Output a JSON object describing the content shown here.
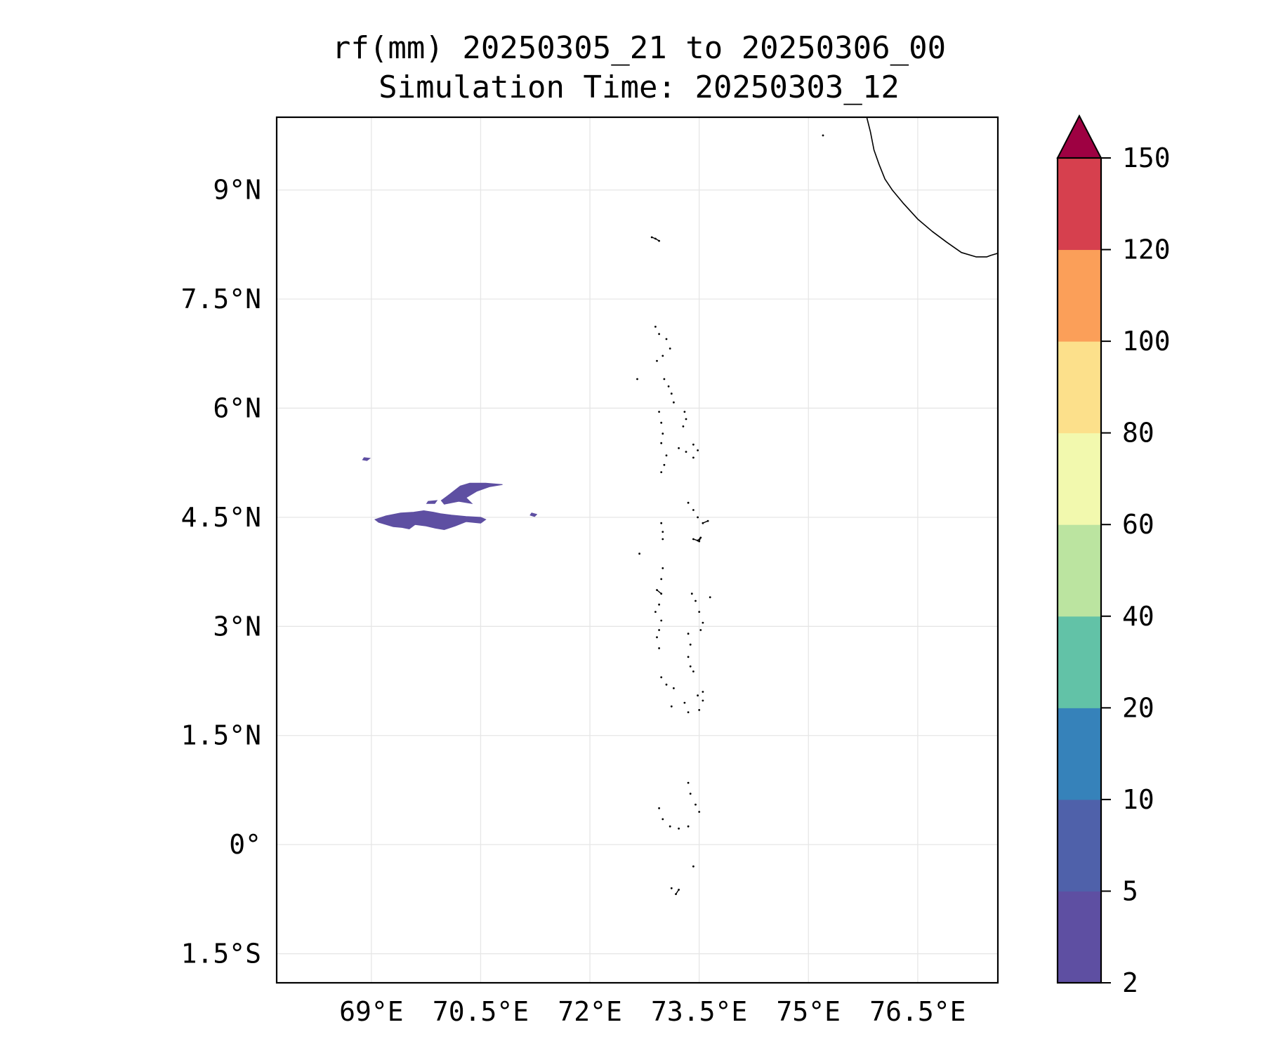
{
  "title": {
    "line1": "rf(mm) 20250305_21 to 20250306_00",
    "line2": "Simulation Time: 20250303_12"
  },
  "map": {
    "extent": {
      "lon_min": 67.7,
      "lon_max": 77.6,
      "lat_min": -1.9,
      "lat_max": 10.0
    },
    "x_ticks": [
      {
        "value": 69.0,
        "label": "69°E"
      },
      {
        "value": 70.5,
        "label": "70.5°E"
      },
      {
        "value": 72.0,
        "label": "72°E"
      },
      {
        "value": 73.5,
        "label": "73.5°E"
      },
      {
        "value": 75.0,
        "label": "75°E"
      },
      {
        "value": 76.5,
        "label": "76.5°E"
      }
    ],
    "y_ticks": [
      {
        "value": 9.0,
        "label": "9°N"
      },
      {
        "value": 7.5,
        "label": "7.5°N"
      },
      {
        "value": 6.0,
        "label": "6°N"
      },
      {
        "value": 4.5,
        "label": "4.5°N"
      },
      {
        "value": 3.0,
        "label": "3°N"
      },
      {
        "value": 1.5,
        "label": "1.5°N"
      },
      {
        "value": 0.0,
        "label": "0°"
      },
      {
        "value": -1.5,
        "label": "1.5°S"
      }
    ],
    "gridlines": true,
    "coastline_color": "#000000",
    "india_coast": [
      [
        75.8,
        10.0
      ],
      [
        75.85,
        9.8
      ],
      [
        75.9,
        9.55
      ],
      [
        75.97,
        9.35
      ],
      [
        76.05,
        9.15
      ],
      [
        76.15,
        9.0
      ],
      [
        76.3,
        8.82
      ],
      [
        76.5,
        8.6
      ],
      [
        76.7,
        8.43
      ],
      [
        76.9,
        8.28
      ],
      [
        77.1,
        8.14
      ],
      [
        77.3,
        8.08
      ],
      [
        77.45,
        8.08
      ],
      [
        77.5,
        8.1
      ],
      [
        77.6,
        8.13
      ],
      [
        77.68,
        8.17
      ],
      [
        77.75,
        8.22
      ],
      [
        77.8,
        8.3
      ]
    ],
    "rain_color": "#5e4fa2",
    "rain_areas": [
      {
        "category": "2-5",
        "polygon": [
          [
            69.95,
            4.55
          ],
          [
            70.1,
            4.53
          ],
          [
            70.3,
            4.51
          ],
          [
            70.5,
            4.5
          ],
          [
            70.57,
            4.47
          ],
          [
            70.5,
            4.42
          ],
          [
            70.3,
            4.44
          ],
          [
            70.15,
            4.38
          ],
          [
            70.0,
            4.33
          ],
          [
            69.88,
            4.35
          ],
          [
            69.75,
            4.38
          ],
          [
            69.6,
            4.4
          ],
          [
            69.52,
            4.34
          ],
          [
            69.42,
            4.36
          ],
          [
            69.3,
            4.37
          ],
          [
            69.2,
            4.4
          ],
          [
            69.1,
            4.43
          ],
          [
            69.05,
            4.47
          ],
          [
            69.2,
            4.52
          ],
          [
            69.4,
            4.56
          ],
          [
            69.58,
            4.57
          ],
          [
            69.72,
            4.59
          ],
          [
            69.85,
            4.57
          ]
        ]
      },
      {
        "category": "2-5",
        "polygon": [
          [
            70.0,
            4.68
          ],
          [
            70.2,
            4.72
          ],
          [
            70.38,
            4.69
          ],
          [
            70.3,
            4.77
          ],
          [
            70.45,
            4.86
          ],
          [
            70.62,
            4.92
          ],
          [
            70.8,
            4.95
          ],
          [
            70.57,
            4.97
          ],
          [
            70.35,
            4.97
          ],
          [
            70.22,
            4.93
          ],
          [
            70.08,
            4.82
          ],
          [
            69.96,
            4.73
          ]
        ]
      },
      {
        "category": "2-5",
        "polygon": [
          [
            69.78,
            4.72
          ],
          [
            69.9,
            4.73
          ],
          [
            69.87,
            4.69
          ],
          [
            69.76,
            4.69
          ]
        ]
      },
      {
        "category": "2-5",
        "polygon": [
          [
            71.2,
            4.56
          ],
          [
            71.27,
            4.54
          ],
          [
            71.24,
            4.51
          ],
          [
            71.18,
            4.53
          ]
        ]
      },
      {
        "category": "2-5",
        "polygon": [
          [
            68.9,
            5.32
          ],
          [
            68.98,
            5.31
          ],
          [
            68.94,
            5.28
          ],
          [
            68.88,
            5.29
          ]
        ]
      }
    ],
    "atoll_segments": [
      [
        [
          72.85,
          8.35
        ],
        [
          72.9,
          8.33
        ],
        [
          72.95,
          8.3
        ]
      ],
      [
        [
          72.9,
          7.12
        ],
        [
          72.95,
          7.02
        ],
        [
          73.05,
          6.95
        ],
        [
          73.1,
          6.82
        ],
        [
          73.0,
          6.72
        ],
        [
          72.92,
          6.65
        ]
      ],
      [
        [
          73.02,
          6.4
        ],
        [
          73.08,
          6.3
        ],
        [
          73.12,
          6.2
        ],
        [
          73.15,
          6.08
        ]
      ],
      [
        [
          72.95,
          5.95
        ],
        [
          72.98,
          5.8
        ],
        [
          73.0,
          5.65
        ],
        [
          72.98,
          5.52
        ]
      ],
      [
        [
          73.3,
          5.95
        ],
        [
          73.32,
          5.85
        ],
        [
          73.28,
          5.75
        ]
      ],
      [
        [
          73.22,
          5.45
        ],
        [
          73.32,
          5.4
        ],
        [
          73.42,
          5.32
        ],
        [
          73.48,
          5.42
        ],
        [
          73.42,
          5.5
        ]
      ],
      [
        [
          73.05,
          5.35
        ],
        [
          73.02,
          5.22
        ],
        [
          72.98,
          5.12
        ]
      ],
      [
        [
          73.35,
          4.7
        ],
        [
          73.42,
          4.6
        ],
        [
          73.48,
          4.5
        ],
        [
          73.55,
          4.42
        ],
        [
          73.62,
          4.45
        ]
      ],
      [
        [
          73.42,
          4.2
        ],
        [
          73.48,
          4.18
        ],
        [
          73.52,
          4.22
        ],
        [
          73.5,
          4.17
        ]
      ],
      [
        [
          72.98,
          4.42
        ],
        [
          73.0,
          4.3
        ],
        [
          73.0,
          4.2
        ]
      ],
      [
        [
          73.0,
          3.8
        ],
        [
          72.98,
          3.65
        ],
        [
          72.92,
          3.5
        ],
        [
          72.98,
          3.45
        ],
        [
          72.95,
          3.3
        ],
        [
          72.9,
          3.2
        ]
      ],
      [
        [
          73.4,
          3.45
        ],
        [
          73.45,
          3.35
        ],
        [
          73.5,
          3.2
        ],
        [
          73.55,
          3.05
        ],
        [
          73.52,
          2.95
        ]
      ],
      [
        [
          72.98,
          3.08
        ],
        [
          72.95,
          2.95
        ],
        [
          72.92,
          2.85
        ],
        [
          72.95,
          2.7
        ]
      ],
      [
        [
          73.35,
          2.9
        ],
        [
          73.38,
          2.75
        ],
        [
          73.35,
          2.58
        ],
        [
          73.38,
          2.45
        ],
        [
          73.42,
          2.38
        ]
      ],
      [
        [
          72.98,
          2.3
        ],
        [
          73.05,
          2.2
        ],
        [
          73.15,
          2.15
        ]
      ],
      [
        [
          73.12,
          1.9
        ],
        [
          73.3,
          1.95
        ],
        [
          73.48,
          2.05
        ],
        [
          73.55,
          2.1
        ],
        [
          73.55,
          1.98
        ],
        [
          73.5,
          1.85
        ],
        [
          73.35,
          1.82
        ]
      ],
      [
        [
          73.35,
          0.85
        ],
        [
          73.38,
          0.7
        ],
        [
          73.45,
          0.55
        ],
        [
          73.5,
          0.45
        ]
      ],
      [
        [
          72.95,
          0.5
        ],
        [
          73.0,
          0.35
        ],
        [
          73.1,
          0.25
        ],
        [
          73.22,
          0.22
        ],
        [
          73.35,
          0.25
        ]
      ],
      [
        [
          73.42,
          -0.3
        ]
      ],
      [
        [
          73.12,
          -0.6
        ],
        [
          73.18,
          -0.68
        ],
        [
          73.22,
          -0.62
        ]
      ],
      [
        [
          72.65,
          6.4
        ]
      ],
      [
        [
          72.68,
          4.0
        ]
      ],
      [
        [
          73.65,
          3.4
        ]
      ],
      [
        [
          75.2,
          9.75
        ]
      ]
    ]
  },
  "colorbar": {
    "orientation": "vertical",
    "extend": "max",
    "tick_labels": [
      "2",
      "5",
      "10",
      "20",
      "40",
      "60",
      "80",
      "100",
      "120",
      "150"
    ],
    "colors": [
      "#5e4fa2",
      "#4f61aa",
      "#3682ba",
      "#62c2a7",
      "#bbe4a0",
      "#f2f9ae",
      "#fce08b",
      "#fb9f59",
      "#d6404e"
    ],
    "extend_color": "#9e0142"
  }
}
